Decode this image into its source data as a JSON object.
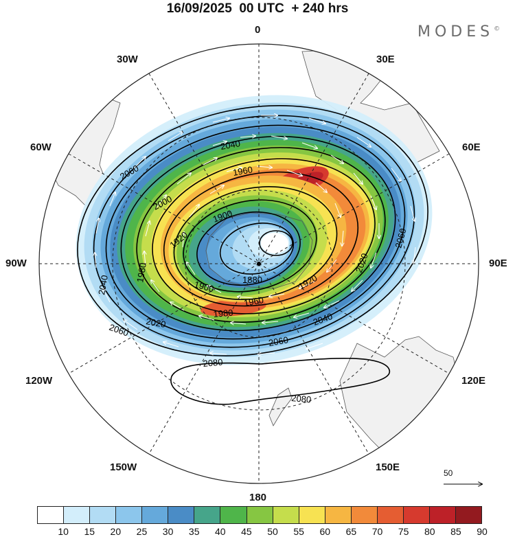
{
  "header": {
    "title": "16/09/2025  00 UTC  + 240 hrs",
    "brand": "MODES",
    "brand_mark": "©"
  },
  "map": {
    "projection": "south-polar-stereographic",
    "field": "500 hPa geopotential height and wind speed",
    "longitude_labels": {
      "n": "0",
      "s": "180",
      "w": "90W",
      "e": "90E",
      "nw1": "30W",
      "ne1": "30E",
      "nw2": "60W",
      "ne2": "60E",
      "sw1": "120W",
      "se1": "120E",
      "sw2": "150W",
      "se2": "150E"
    },
    "contour_labels": [
      "2060",
      "2040",
      "2000",
      "1960",
      "1900",
      "1920",
      "1980",
      "1880",
      "1900",
      "2040",
      "2020",
      "1980",
      "1960",
      "2040",
      "2060",
      "2080",
      "2080",
      "2020",
      "2060",
      "2060",
      "1920"
    ],
    "vector_reference": "50"
  },
  "colorbar": {
    "labels": [
      "10",
      "15",
      "20",
      "25",
      "30",
      "35",
      "40",
      "45",
      "50",
      "55",
      "60",
      "65",
      "70",
      "75",
      "80",
      "85",
      "90"
    ],
    "colors": [
      "#ffffff",
      "#d3eefb",
      "#b2dcf4",
      "#8cc6ec",
      "#65a9db",
      "#4a8cc6",
      "#46a58a",
      "#4fb54a",
      "#86c642",
      "#c5dd4c",
      "#f7e252",
      "#f6b642",
      "#f28a3a",
      "#e55d32",
      "#d63a2e",
      "#bd2128",
      "#931a1f"
    ]
  },
  "colors": {
    "land": "#f1f1f1",
    "coast": "#555555",
    "contour": "#000000",
    "grid": "#222222",
    "vector": "#ffffff"
  }
}
